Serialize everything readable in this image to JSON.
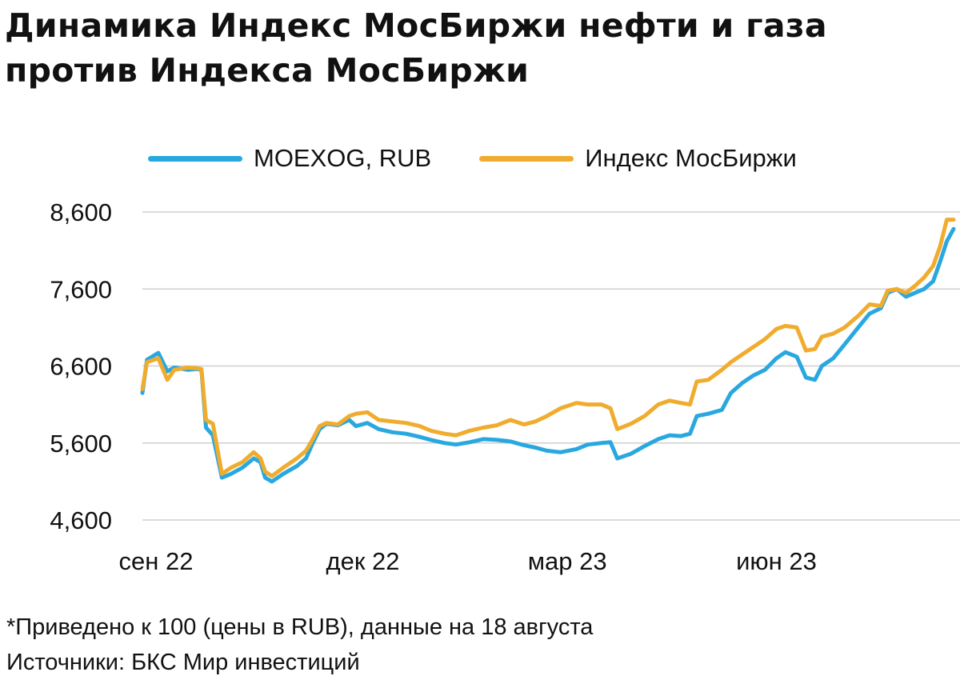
{
  "title": "Динамика Индекс МосБиржи нефти и газа против Индекса МосБиржи",
  "footnote": "*Приведено к 100 (цены в RUB), данные на 18 августа",
  "source": "Источники: БКС Мир инвестиций",
  "colors": {
    "series_1": "#29a8df",
    "series_2": "#f0ac2e",
    "grid": "#cfcfcf"
  },
  "chart_data": {
    "type": "line",
    "title": "Динамика Индекс МосБиржи нефти и газа против Индекса МосБиржи",
    "xlabel": "",
    "ylabel": "",
    "ylim": [
      4600,
      8600
    ],
    "yticks": [
      8600,
      7600,
      6600,
      5600,
      4600
    ],
    "ytick_labels": [
      "8,600",
      "7,600",
      "6,600",
      "5,600",
      "4,600"
    ],
    "xlim": [
      "2022-08-26",
      "2023-08-18"
    ],
    "xticks": [
      "2022-09-01",
      "2022-12-01",
      "2023-03-01",
      "2023-06-01"
    ],
    "xtick_labels": [
      "сен 22",
      "дек 22",
      "мар 23",
      "июн 23"
    ],
    "grid": "horizontal",
    "legend_position": "top",
    "series": [
      {
        "name": "MOEXOG, RUB",
        "color": "#29a8df",
        "points": [
          [
            "2022-08-26",
            6250
          ],
          [
            "2022-08-28",
            6680
          ],
          [
            "2022-09-02",
            6770
          ],
          [
            "2022-09-06",
            6530
          ],
          [
            "2022-09-09",
            6580
          ],
          [
            "2022-09-15",
            6550
          ],
          [
            "2022-09-19",
            6560
          ],
          [
            "2022-09-21",
            6550
          ],
          [
            "2022-09-23",
            5800
          ],
          [
            "2022-09-26",
            5700
          ],
          [
            "2022-09-30",
            5150
          ],
          [
            "2022-10-04",
            5200
          ],
          [
            "2022-10-09",
            5280
          ],
          [
            "2022-10-14",
            5400
          ],
          [
            "2022-10-17",
            5350
          ],
          [
            "2022-10-19",
            5150
          ],
          [
            "2022-10-22",
            5100
          ],
          [
            "2022-10-27",
            5200
          ],
          [
            "2022-11-02",
            5300
          ],
          [
            "2022-11-06",
            5400
          ],
          [
            "2022-11-09",
            5600
          ],
          [
            "2022-11-12",
            5780
          ],
          [
            "2022-11-15",
            5850
          ],
          [
            "2022-11-20",
            5830
          ],
          [
            "2022-11-25",
            5900
          ],
          [
            "2022-11-28",
            5820
          ],
          [
            "2022-12-03",
            5860
          ],
          [
            "2022-12-08",
            5780
          ],
          [
            "2022-12-14",
            5740
          ],
          [
            "2022-12-20",
            5720
          ],
          [
            "2022-12-26",
            5680
          ],
          [
            "2022-12-31",
            5640
          ],
          [
            "2023-01-06",
            5600
          ],
          [
            "2023-01-11",
            5580
          ],
          [
            "2023-01-17",
            5610
          ],
          [
            "2023-01-23",
            5650
          ],
          [
            "2023-01-29",
            5640
          ],
          [
            "2023-02-04",
            5620
          ],
          [
            "2023-02-10",
            5570
          ],
          [
            "2023-02-15",
            5540
          ],
          [
            "2023-02-20",
            5500
          ],
          [
            "2023-02-26",
            5480
          ],
          [
            "2023-03-05",
            5520
          ],
          [
            "2023-03-10",
            5580
          ],
          [
            "2023-03-16",
            5600
          ],
          [
            "2023-03-20",
            5610
          ],
          [
            "2023-03-23",
            5400
          ],
          [
            "2023-03-29",
            5460
          ],
          [
            "2023-04-04",
            5560
          ],
          [
            "2023-04-10",
            5650
          ],
          [
            "2023-04-15",
            5700
          ],
          [
            "2023-04-20",
            5690
          ],
          [
            "2023-04-24",
            5720
          ],
          [
            "2023-04-27",
            5950
          ],
          [
            "2023-05-02",
            5980
          ],
          [
            "2023-05-08",
            6030
          ],
          [
            "2023-05-12",
            6250
          ],
          [
            "2023-05-17",
            6380
          ],
          [
            "2023-05-22",
            6480
          ],
          [
            "2023-05-27",
            6550
          ],
          [
            "2023-06-01",
            6700
          ],
          [
            "2023-06-05",
            6780
          ],
          [
            "2023-06-10",
            6720
          ],
          [
            "2023-06-14",
            6450
          ],
          [
            "2023-06-18",
            6420
          ],
          [
            "2023-06-21",
            6600
          ],
          [
            "2023-06-26",
            6700
          ],
          [
            "2023-07-01",
            6880
          ],
          [
            "2023-07-07",
            7100
          ],
          [
            "2023-07-12",
            7280
          ],
          [
            "2023-07-17",
            7350
          ],
          [
            "2023-07-20",
            7550
          ],
          [
            "2023-07-24",
            7600
          ],
          [
            "2023-07-28",
            7500
          ],
          [
            "2023-08-01",
            7550
          ],
          [
            "2023-08-05",
            7600
          ],
          [
            "2023-08-09",
            7700
          ],
          [
            "2023-08-12",
            7950
          ],
          [
            "2023-08-15",
            8220
          ],
          [
            "2023-08-18",
            8380
          ]
        ]
      },
      {
        "name": "Индекс МосБиржи",
        "color": "#f0ac2e",
        "points": [
          [
            "2022-08-26",
            6300
          ],
          [
            "2022-08-28",
            6650
          ],
          [
            "2022-09-02",
            6700
          ],
          [
            "2022-09-06",
            6420
          ],
          [
            "2022-09-09",
            6550
          ],
          [
            "2022-09-15",
            6580
          ],
          [
            "2022-09-19",
            6570
          ],
          [
            "2022-09-21",
            6560
          ],
          [
            "2022-09-23",
            5900
          ],
          [
            "2022-09-26",
            5850
          ],
          [
            "2022-09-30",
            5200
          ],
          [
            "2022-10-04",
            5280
          ],
          [
            "2022-10-09",
            5350
          ],
          [
            "2022-10-14",
            5480
          ],
          [
            "2022-10-17",
            5400
          ],
          [
            "2022-10-19",
            5230
          ],
          [
            "2022-10-22",
            5170
          ],
          [
            "2022-10-27",
            5280
          ],
          [
            "2022-11-02",
            5400
          ],
          [
            "2022-11-06",
            5500
          ],
          [
            "2022-11-09",
            5650
          ],
          [
            "2022-11-12",
            5820
          ],
          [
            "2022-11-15",
            5860
          ],
          [
            "2022-11-20",
            5840
          ],
          [
            "2022-11-25",
            5950
          ],
          [
            "2022-11-28",
            5980
          ],
          [
            "2022-12-03",
            6000
          ],
          [
            "2022-12-08",
            5900
          ],
          [
            "2022-12-14",
            5880
          ],
          [
            "2022-12-20",
            5860
          ],
          [
            "2022-12-26",
            5820
          ],
          [
            "2022-12-31",
            5760
          ],
          [
            "2023-01-06",
            5720
          ],
          [
            "2023-01-11",
            5700
          ],
          [
            "2023-01-17",
            5760
          ],
          [
            "2023-01-23",
            5800
          ],
          [
            "2023-01-29",
            5830
          ],
          [
            "2023-02-04",
            5900
          ],
          [
            "2023-02-10",
            5840
          ],
          [
            "2023-02-15",
            5880
          ],
          [
            "2023-02-20",
            5950
          ],
          [
            "2023-02-26",
            6050
          ],
          [
            "2023-03-05",
            6120
          ],
          [
            "2023-03-10",
            6100
          ],
          [
            "2023-03-16",
            6100
          ],
          [
            "2023-03-20",
            6050
          ],
          [
            "2023-03-23",
            5780
          ],
          [
            "2023-03-29",
            5850
          ],
          [
            "2023-04-04",
            5950
          ],
          [
            "2023-04-10",
            6100
          ],
          [
            "2023-04-15",
            6150
          ],
          [
            "2023-04-20",
            6120
          ],
          [
            "2023-04-24",
            6100
          ],
          [
            "2023-04-27",
            6400
          ],
          [
            "2023-05-02",
            6420
          ],
          [
            "2023-05-08",
            6550
          ],
          [
            "2023-05-12",
            6650
          ],
          [
            "2023-05-17",
            6750
          ],
          [
            "2023-05-22",
            6850
          ],
          [
            "2023-05-27",
            6950
          ],
          [
            "2023-06-01",
            7080
          ],
          [
            "2023-06-05",
            7120
          ],
          [
            "2023-06-10",
            7100
          ],
          [
            "2023-06-14",
            6800
          ],
          [
            "2023-06-18",
            6820
          ],
          [
            "2023-06-21",
            6980
          ],
          [
            "2023-06-26",
            7020
          ],
          [
            "2023-07-01",
            7100
          ],
          [
            "2023-07-07",
            7250
          ],
          [
            "2023-07-12",
            7400
          ],
          [
            "2023-07-17",
            7380
          ],
          [
            "2023-07-20",
            7580
          ],
          [
            "2023-07-24",
            7600
          ],
          [
            "2023-07-28",
            7550
          ],
          [
            "2023-08-01",
            7640
          ],
          [
            "2023-08-05",
            7750
          ],
          [
            "2023-08-09",
            7900
          ],
          [
            "2023-08-12",
            8150
          ],
          [
            "2023-08-15",
            8500
          ],
          [
            "2023-08-18",
            8500
          ]
        ]
      }
    ]
  }
}
